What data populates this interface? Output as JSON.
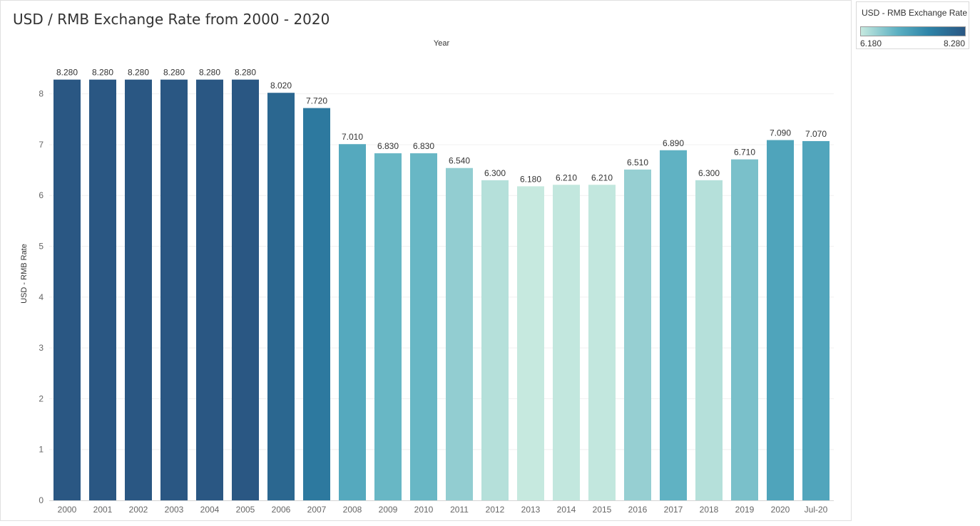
{
  "chart_data": {
    "type": "bar",
    "title": "USD / RMB Exchange Rate from 2000 - 2020",
    "xlabel": "Year",
    "ylabel": "USD - RMB Rate",
    "categories": [
      "2000",
      "2001",
      "2002",
      "2003",
      "2004",
      "2005",
      "2006",
      "2007",
      "2008",
      "2009",
      "2010",
      "2011",
      "2012",
      "2013",
      "2014",
      "2015",
      "2016",
      "2017",
      "2018",
      "2019",
      "2020",
      "Jul-20"
    ],
    "values": [
      8.28,
      8.28,
      8.28,
      8.28,
      8.28,
      8.28,
      8.02,
      7.72,
      7.01,
      6.83,
      6.83,
      6.54,
      6.3,
      6.18,
      6.21,
      6.21,
      6.51,
      6.89,
      6.3,
      6.71,
      7.09,
      7.07
    ],
    "data_labels": [
      "8.280",
      "8.280",
      "8.280",
      "8.280",
      "8.280",
      "8.280",
      "8.020",
      "7.720",
      "7.010",
      "6.830",
      "6.830",
      "6.540",
      "6.300",
      "6.180",
      "6.210",
      "6.210",
      "6.510",
      "6.890",
      "6.300",
      "6.710",
      "7.090",
      "7.070"
    ],
    "ylim": [
      0,
      8.5
    ],
    "yticks": [
      0,
      1,
      2,
      3,
      4,
      5,
      6,
      7,
      8
    ],
    "grid": true,
    "color_scale": {
      "title": "USD - RMB Exchange Rate",
      "min_label": "6.180",
      "max_label": "8.280",
      "min": 6.18,
      "max": 8.28,
      "stops": [
        "#c6e9df",
        "#5cb0c2",
        "#2e84a8",
        "#2a5783"
      ]
    },
    "legend_position": "top-right"
  }
}
